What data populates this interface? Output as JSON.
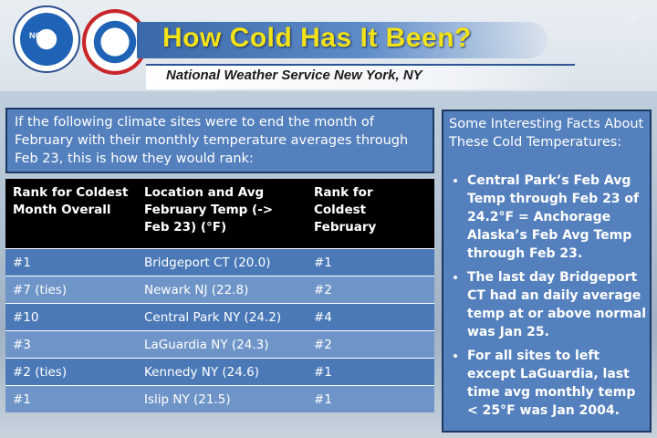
{
  "header": {
    "title": "How Cold Has It Been?",
    "subtitle": "National Weather Service New York, NY",
    "logo_left_text": "NOAA"
  },
  "intro": {
    "text": "If the following climate sites were to end the month of February with their monthly temperature averages through Feb 23, this is how they would rank:"
  },
  "table": {
    "headers": [
      "Rank for Coldest Month Overall",
      "Location and Avg February Temp (-> Feb 23) (°F)",
      "Rank for Coldest February"
    ],
    "rows": [
      [
        "#1",
        "Bridgeport CT (20.0)",
        "#1"
      ],
      [
        "#7 (ties)",
        "Newark NJ (22.8)",
        "#2"
      ],
      [
        "#10",
        "Central Park NY (24.2)",
        "#4"
      ],
      [
        "#3",
        "LaGuardia NY (24.3)",
        "#2"
      ],
      [
        "#2 (ties)",
        "Kennedy NY (24.6)",
        "#1"
      ],
      [
        "#1",
        "Islip NY (21.5)",
        "#1"
      ]
    ]
  },
  "facts": {
    "heading": "Some Interesting Facts About These Cold Temperatures:",
    "items": [
      "Central Park’s Feb Avg Temp through Feb 23 of 24.2°F = Anchorage Alaska’s Feb Avg Temp through Feb 23.",
      "The last day Bridgeport CT had an daily average temp at or above normal was Jan 25.",
      "For all sites to left except LaGuardia, last time avg monthly temp < 25°F was Jan 2004."
    ]
  },
  "colors": {
    "title_yellow": "#f2e21a",
    "panel_blue": "#5480bd",
    "row_dark": "#4b79b7",
    "row_light": "#6f95c8"
  }
}
